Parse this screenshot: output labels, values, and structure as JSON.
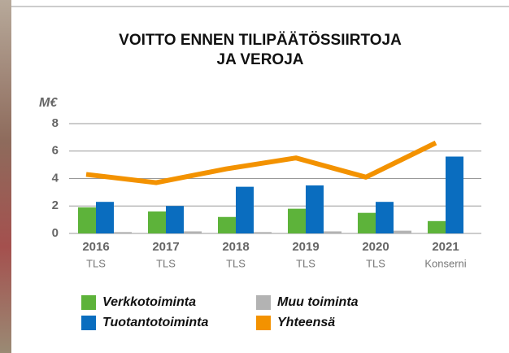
{
  "chart_data": {
    "type": "bar",
    "title": "VOITTO ENNEN TILIPÄÄTÖSSIIRTOJA",
    "title_line2": "JA VEROJA",
    "y_label": "M€",
    "categories": [
      "2016",
      "2017",
      "2018",
      "2019",
      "2020",
      "2021"
    ],
    "sublabels": [
      "TLS",
      "TLS",
      "TLS",
      "TLS",
      "TLS",
      "Konserni"
    ],
    "series": [
      {
        "name": "Verkkotoiminta",
        "color": "#5db33a",
        "values": [
          1.9,
          1.6,
          1.2,
          1.8,
          1.5,
          0.9
        ]
      },
      {
        "name": "Tuotantotoiminta",
        "color": "#0a6dbf",
        "values": [
          2.3,
          2.0,
          3.4,
          3.5,
          2.3,
          5.6
        ]
      },
      {
        "name": "Muu toiminta",
        "color": "#b3b3b3",
        "values": [
          0.1,
          0.15,
          0.1,
          0.15,
          0.2,
          0
        ]
      },
      {
        "name": "Yhteensä",
        "color": "#f39200",
        "type": "line",
        "values": [
          4.3,
          3.7,
          4.7,
          5.5,
          4.1,
          6.6
        ]
      }
    ],
    "ylim": [
      0,
      8
    ],
    "yticks": [
      0,
      2,
      4,
      6,
      8
    ],
    "grid": true
  }
}
